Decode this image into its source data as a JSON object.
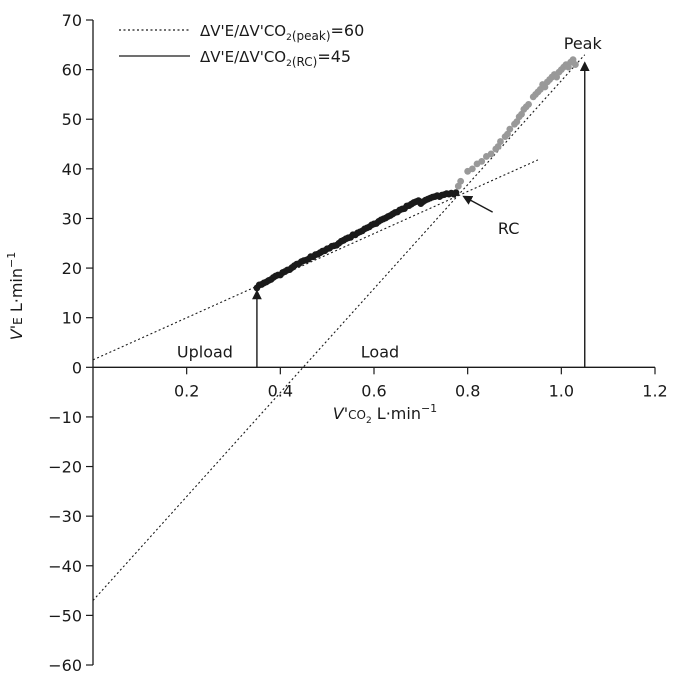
{
  "chart_data": {
    "type": "scatter",
    "title": "",
    "xlabel": {
      "main": "V'",
      "sub": "CO",
      "sub2": "2",
      "unit": " L·min",
      "exp": "−1"
    },
    "ylabel": {
      "main": "V'",
      "sub": "E",
      "unit": " L·min",
      "exp": "−1"
    },
    "xlim": [
      0,
      1.2
    ],
    "ylim": [
      -60,
      70
    ],
    "x_ticks": [
      0.2,
      0.4,
      0.6,
      0.8,
      1.0,
      1.2
    ],
    "x_tick_labels": [
      "0.2",
      "0.4",
      "0.6",
      "0.8",
      "1.0",
      "1.2"
    ],
    "y_ticks": [
      70,
      60,
      50,
      40,
      30,
      20,
      10,
      0,
      -10,
      -20,
      -30,
      -40,
      -50,
      -60
    ],
    "y_tick_labels": [
      "70",
      "60",
      "50",
      "40",
      "30",
      "20",
      "10",
      "0",
      "−10",
      "−20",
      "−30",
      "−40",
      "−50",
      "−60"
    ],
    "grid": false,
    "legend": [
      {
        "style": "dotted",
        "label_main": "ΔV'E/ΔV'CO",
        "label_sub2": "2",
        "label_paren": "(peak)",
        "label_value": "=60"
      },
      {
        "style": "solid",
        "label_main": "ΔV'E/ΔV'CO",
        "label_sub2": "2",
        "label_paren": "(RC)",
        "label_value": "=45"
      }
    ],
    "legend_position": "top-left",
    "lines": [
      {
        "style": "dotted",
        "x": [
          0.0,
          0.95
        ],
        "y": [
          1.5,
          41.8
        ]
      },
      {
        "style": "dotted",
        "x": [
          0.0,
          1.05
        ],
        "y": [
          -47,
          63
        ]
      }
    ],
    "series": [
      {
        "color": "#1a1a1a",
        "x": [
          0.35,
          0.355,
          0.36,
          0.365,
          0.37,
          0.375,
          0.38,
          0.385,
          0.39,
          0.395,
          0.4,
          0.405,
          0.41,
          0.415,
          0.42,
          0.425,
          0.43,
          0.435,
          0.44,
          0.445,
          0.45,
          0.455,
          0.46,
          0.465,
          0.47,
          0.475,
          0.48,
          0.485,
          0.49,
          0.495,
          0.5,
          0.505,
          0.51,
          0.515,
          0.52,
          0.525,
          0.53,
          0.535,
          0.54,
          0.545,
          0.55,
          0.555,
          0.56,
          0.565,
          0.57,
          0.575,
          0.58,
          0.585,
          0.59,
          0.595,
          0.6,
          0.605,
          0.61,
          0.615,
          0.62,
          0.625,
          0.63,
          0.635,
          0.64,
          0.645,
          0.65,
          0.655,
          0.66,
          0.665,
          0.67,
          0.675,
          0.68,
          0.685,
          0.69,
          0.695,
          0.7,
          0.705,
          0.71,
          0.715,
          0.72,
          0.725,
          0.73,
          0.735,
          0.74,
          0.745,
          0.75,
          0.755,
          0.76,
          0.765,
          0.77,
          0.775
        ],
        "y": [
          16.0,
          16.6,
          16.7,
          17.0,
          17.2,
          17.5,
          17.7,
          18.1,
          18.4,
          18.6,
          18.6,
          19.1,
          19.3,
          19.6,
          19.7,
          20.1,
          20.5,
          20.8,
          20.9,
          21.3,
          21.5,
          21.6,
          21.8,
          22.3,
          22.3,
          22.7,
          22.8,
          23.1,
          23.4,
          23.5,
          23.9,
          24.0,
          24.4,
          24.5,
          24.6,
          25.0,
          25.4,
          25.6,
          25.9,
          26.1,
          26.2,
          26.7,
          26.7,
          27.1,
          27.3,
          27.5,
          27.9,
          28.1,
          28.3,
          28.7,
          28.9,
          29.0,
          29.4,
          29.7,
          29.9,
          30.1,
          30.4,
          30.6,
          30.9,
          31.2,
          31.3,
          31.7,
          31.9,
          32.0,
          32.5,
          32.6,
          32.9,
          33.2,
          33.4,
          33.6,
          33.0,
          33.4,
          33.7,
          33.9,
          34.1,
          34.3,
          34.4,
          34.6,
          34.4,
          34.7,
          34.8,
          35.0,
          34.9,
          35.1,
          34.9,
          35.2
        ]
      },
      {
        "color": "#999999",
        "x": [
          0.78,
          0.785,
          0.8,
          0.81,
          0.82,
          0.83,
          0.84,
          0.85,
          0.86,
          0.865,
          0.87,
          0.88,
          0.885,
          0.89,
          0.9,
          0.905,
          0.91,
          0.915,
          0.92,
          0.925,
          0.93,
          0.94,
          0.945,
          0.95,
          0.955,
          0.96,
          0.965,
          0.97,
          0.975,
          0.98,
          0.985,
          0.99,
          0.995,
          1.0,
          1.005,
          1.01,
          1.015,
          1.02,
          1.025,
          1.03
        ],
        "y": [
          36.5,
          37.5,
          39.5,
          40.0,
          41.0,
          41.5,
          42.5,
          43.0,
          44.0,
          44.5,
          45.5,
          46.5,
          47.0,
          48.0,
          49.0,
          49.5,
          50.5,
          51.0,
          52.0,
          52.5,
          53.0,
          54.5,
          55.0,
          55.5,
          56.0,
          57.0,
          56.5,
          57.5,
          58.0,
          58.5,
          59.0,
          58.5,
          59.5,
          60.0,
          60.5,
          61.0,
          60.5,
          61.5,
          62.0,
          61.0
        ]
      }
    ],
    "annotations": [
      {
        "text": "Peak",
        "x": 1.05,
        "y": 61.5
      },
      {
        "text": "RC",
        "x": 0.785,
        "y": 34.5
      },
      {
        "text": "Upload",
        "x": 0.35,
        "y": 15.5
      },
      {
        "text": "Load",
        "x": 0.6,
        "y": 0
      }
    ]
  }
}
